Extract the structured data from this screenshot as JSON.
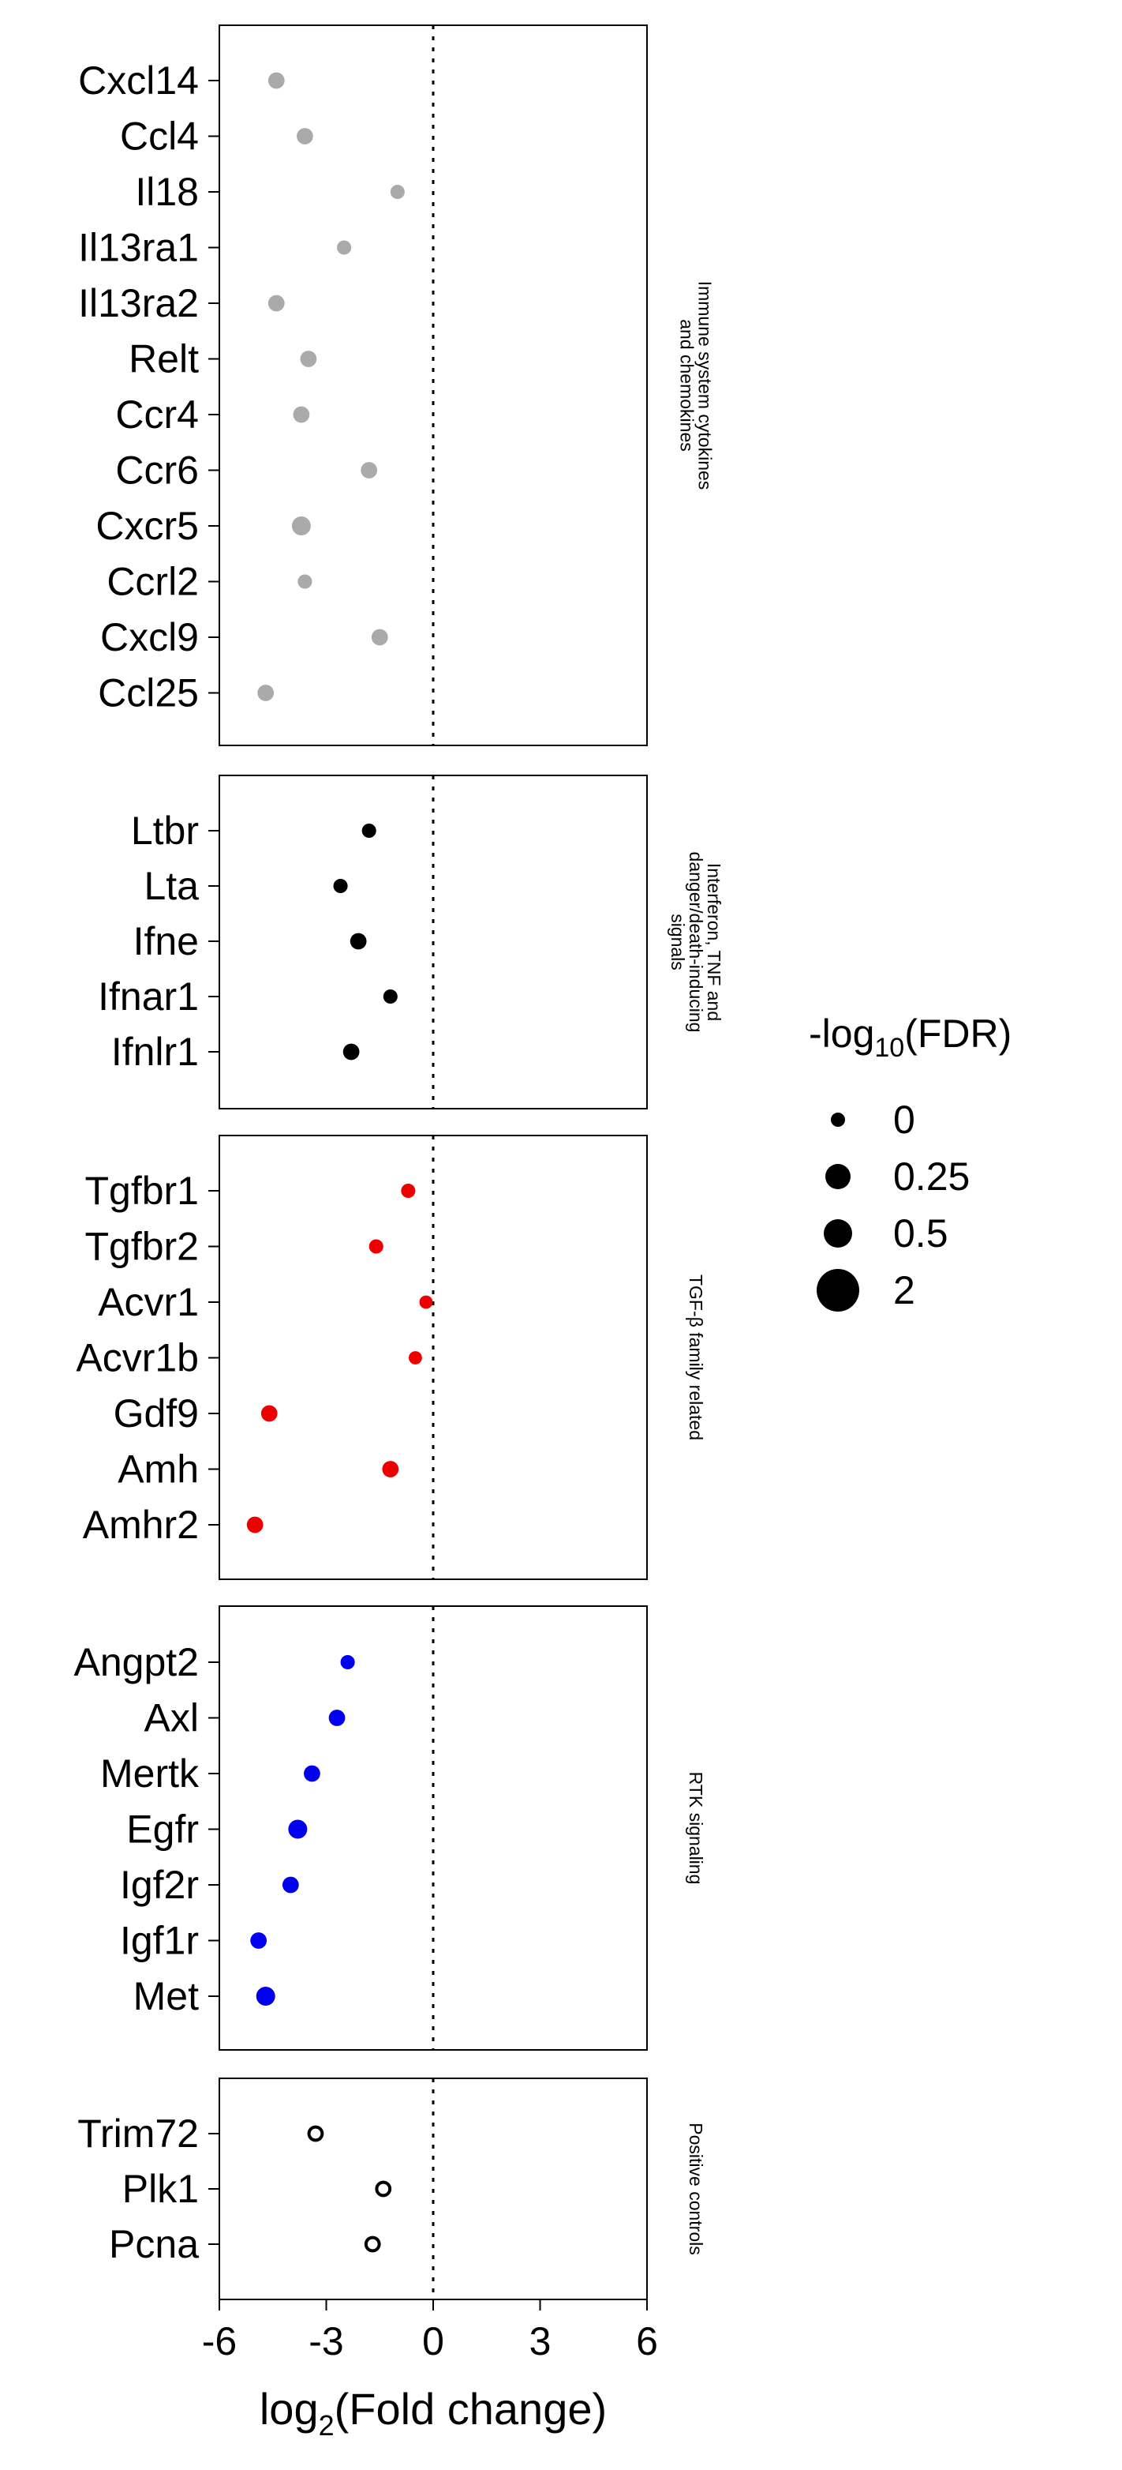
{
  "chart_data": {
    "type": "scatter",
    "xlabel_main": "log",
    "xlabel_sub": "2",
    "xlabel_rest": "(Fold change)",
    "xlim": [
      -6,
      6
    ],
    "xticks": [
      -6,
      -3,
      0,
      3,
      6
    ],
    "vline_x": 0,
    "grid": false,
    "legend": {
      "placement": "right",
      "title_main": "-log",
      "title_sub": "10",
      "title_rest": "(FDR)",
      "entries": [
        {
          "label": "0",
          "size": 0
        },
        {
          "label": "0.25",
          "size": 0.25
        },
        {
          "label": "0.5",
          "size": 0.5
        },
        {
          "label": "2",
          "size": 2
        }
      ]
    },
    "panels": [
      {
        "strip": [
          "Immune system cytokines",
          "and chemokines"
        ],
        "color": "#aaaaaa",
        "filled": true,
        "genes": [
          {
            "label": "Cxcl14",
            "x": -4.4,
            "fdr": 0.25
          },
          {
            "label": "Ccl4",
            "x": -3.6,
            "fdr": 0.25
          },
          {
            "label": "Il18",
            "x": -1.0,
            "fdr": 0.1
          },
          {
            "label": "Il13ra1",
            "x": -2.5,
            "fdr": 0.1
          },
          {
            "label": "Il13ra2",
            "x": -4.4,
            "fdr": 0.25
          },
          {
            "label": "Relt",
            "x": -3.5,
            "fdr": 0.25
          },
          {
            "label": "Ccr4",
            "x": -3.7,
            "fdr": 0.25
          },
          {
            "label": "Ccr6",
            "x": -1.8,
            "fdr": 0.25
          },
          {
            "label": "Cxcr5",
            "x": -3.7,
            "fdr": 0.5
          },
          {
            "label": "Ccrl2",
            "x": -3.6,
            "fdr": 0.1
          },
          {
            "label": "Cxcl9",
            "x": -1.5,
            "fdr": 0.25
          },
          {
            "label": "Ccl25",
            "x": -4.7,
            "fdr": 0.25
          }
        ]
      },
      {
        "strip": [
          "Interferon, TNF and",
          "danger/death-inducing",
          "signals"
        ],
        "color": "#000000",
        "filled": true,
        "genes": [
          {
            "label": "Ltbr",
            "x": -1.8,
            "fdr": 0.1
          },
          {
            "label": "Lta",
            "x": -2.6,
            "fdr": 0.1
          },
          {
            "label": "Ifne",
            "x": -2.1,
            "fdr": 0.25
          },
          {
            "label": "Ifnar1",
            "x": -1.2,
            "fdr": 0.1
          },
          {
            "label": "Ifnlr1",
            "x": -2.3,
            "fdr": 0.25
          }
        ]
      },
      {
        "strip": [
          "TGF-β family related"
        ],
        "color": "#ee0000",
        "filled": true,
        "genes": [
          {
            "label": "Tgfbr1",
            "x": -0.7,
            "fdr": 0.1
          },
          {
            "label": "Tgfbr2",
            "x": -1.6,
            "fdr": 0.1
          },
          {
            "label": "Acvr1",
            "x": -0.2,
            "fdr": 0.05
          },
          {
            "label": "Acvr1b",
            "x": -0.5,
            "fdr": 0.05
          },
          {
            "label": "Gdf9",
            "x": -4.6,
            "fdr": 0.25
          },
          {
            "label": "Amh",
            "x": -1.2,
            "fdr": 0.25
          },
          {
            "label": "Amhr2",
            "x": -5.0,
            "fdr": 0.25
          }
        ]
      },
      {
        "strip": [
          "RTK signaling"
        ],
        "color": "#0000ee",
        "filled": true,
        "genes": [
          {
            "label": "Angpt2",
            "x": -2.4,
            "fdr": 0.1
          },
          {
            "label": "Axl",
            "x": -2.7,
            "fdr": 0.25
          },
          {
            "label": "Mertk",
            "x": -3.4,
            "fdr": 0.25
          },
          {
            "label": "Egfr",
            "x": -3.8,
            "fdr": 0.5
          },
          {
            "label": "Igf2r",
            "x": -4.0,
            "fdr": 0.25
          },
          {
            "label": "Igf1r",
            "x": -4.9,
            "fdr": 0.25
          },
          {
            "label": "Met",
            "x": -4.7,
            "fdr": 0.5
          }
        ]
      },
      {
        "strip": [
          "Positive controls"
        ],
        "color": "#000000",
        "filled": false,
        "genes": [
          {
            "label": "Trim72",
            "x": -3.3,
            "fdr": 0.25
          },
          {
            "label": "Plk1",
            "x": -1.4,
            "fdr": 0.25
          },
          {
            "label": "Pcna",
            "x": -1.7,
            "fdr": 0.25
          }
        ]
      }
    ]
  }
}
